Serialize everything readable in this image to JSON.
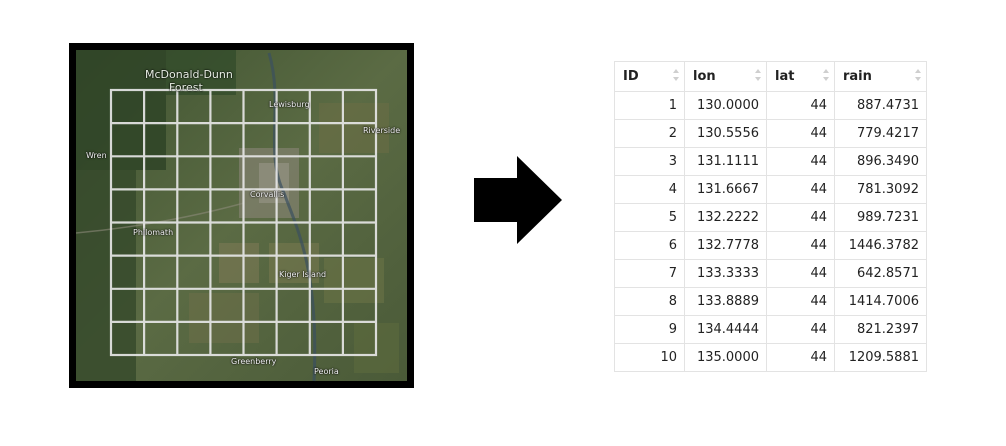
{
  "map": {
    "icon": "satellite-map-image",
    "labels": {
      "mcdonald_dunn": "McDonald-Dunn",
      "forest": "Forest",
      "lewisburg": "Lewisburg",
      "riverside": "Riverside",
      "wren": "Wren",
      "corvallis": "Corvallis",
      "philomath": "Philomath",
      "kiger_island": "Kiger Island",
      "greenberry": "Greenberry",
      "peoria": "Peoria"
    }
  },
  "arrow": {
    "icon": "right-arrow-icon",
    "color": "#000000"
  },
  "table": {
    "columns": [
      "ID",
      "lon",
      "lat",
      "rain"
    ],
    "rows": [
      [
        "1",
        "130.0000",
        "44",
        "887.4731"
      ],
      [
        "2",
        "130.5556",
        "44",
        "779.4217"
      ],
      [
        "3",
        "131.1111",
        "44",
        "896.3490"
      ],
      [
        "4",
        "131.6667",
        "44",
        "781.3092"
      ],
      [
        "5",
        "132.2222",
        "44",
        "989.7231"
      ],
      [
        "6",
        "132.7778",
        "44",
        "1446.3782"
      ],
      [
        "7",
        "133.3333",
        "44",
        "642.8571"
      ],
      [
        "8",
        "133.8889",
        "44",
        "1414.7006"
      ],
      [
        "9",
        "134.4444",
        "44",
        "821.2397"
      ],
      [
        "10",
        "135.0000",
        "44",
        "1209.5881"
      ]
    ]
  }
}
